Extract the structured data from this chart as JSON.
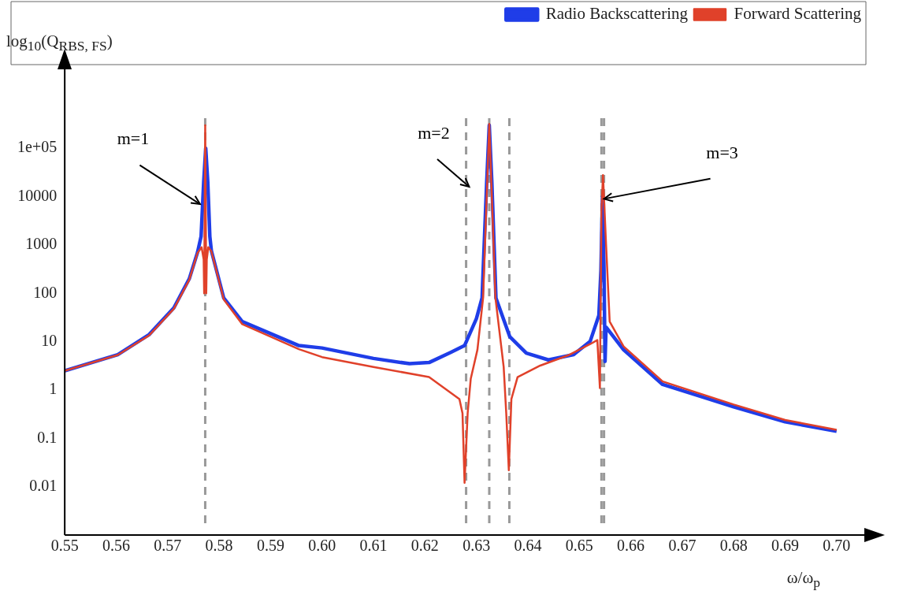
{
  "chart_data": {
    "type": "line",
    "xlabel": "ω/ω$_{p}$",
    "ylabel": "log$_{10}$(Q$_{RBS, FS}$)",
    "log": "y",
    "grid": false,
    "legend": "top right",
    "marker": "none",
    "line_style": "solid",
    "xlim": [
      0.55,
      0.706
    ],
    "ylim": [
      0.001,
      5000000
    ],
    "xticks": [
      0.55,
      0.56,
      0.57,
      0.58,
      0.59,
      {
        "value": 0.6,
        "label": "0.60"
      },
      0.61,
      0.62,
      0.63,
      0.64,
      0.65,
      0.66,
      0.67,
      0.68,
      0.69,
      {
        "value": 0.7,
        "label": "0.70"
      }
    ],
    "yticks": [
      0.01,
      0.1,
      1,
      10,
      100,
      1000,
      10000,
      {
        "value": 100000,
        "label": "1e+05"
      }
    ],
    "series": [
      {
        "name": "Radio Backscattering",
        "color": "#1f3de8",
        "x": [
          0.55,
          0.5603,
          0.5664,
          0.5712,
          0.5742,
          0.5758,
          0.5765,
          0.577,
          0.5774,
          0.5778,
          0.5782,
          0.5785,
          0.5809,
          0.5845,
          0.5955,
          0.6,
          0.61,
          0.617,
          0.6208,
          0.625,
          0.6277,
          0.63,
          0.6311,
          0.632,
          0.6325,
          0.633,
          0.6338,
          0.6365,
          0.6397,
          0.644,
          0.6489,
          0.6521,
          0.6538,
          0.6542,
          0.6545,
          0.6548,
          0.655,
          0.6552,
          0.6586,
          0.6662,
          0.68,
          0.69,
          0.7
        ],
        "values": [
          2.5,
          5.4,
          14,
          50,
          200,
          700,
          1500,
          20000,
          100000,
          20000,
          1500,
          760,
          80,
          26,
          8.3,
          7.4,
          4.5,
          3.5,
          3.7,
          6,
          8.3,
          30,
          80,
          20000,
          300000,
          20000,
          80,
          12.6,
          5.8,
          4.2,
          5.4,
          10.1,
          35,
          300,
          10000,
          300,
          3.9,
          20,
          6.8,
          1.3,
          0.45,
          0.22,
          0.14
        ]
      },
      {
        "name": "Forward Scattering",
        "color": "#e0412a",
        "x": [
          0.55,
          0.5603,
          0.5664,
          0.5712,
          0.5742,
          0.5758,
          0.5766,
          0.577,
          0.5771,
          0.5773,
          0.5775,
          0.5776,
          0.5779,
          0.5785,
          0.5809,
          0.5845,
          0.5955,
          0.6,
          0.61,
          0.6208,
          0.6267,
          0.6273,
          0.6277,
          0.6283,
          0.6289,
          0.6302,
          0.6313,
          0.6325,
          0.6337,
          0.6353,
          0.6358,
          0.6363,
          0.6368,
          0.638,
          0.6424,
          0.6478,
          0.6521,
          0.6535,
          0.654,
          0.6543,
          0.6546,
          0.6552,
          0.6559,
          0.6586,
          0.6662,
          0.68,
          0.69,
          0.7
        ],
        "values": [
          2.5,
          5.3,
          13.5,
          48,
          190,
          680,
          900,
          500,
          100,
          300000,
          100,
          500,
          900,
          740,
          75,
          23,
          7,
          4.8,
          3,
          1.85,
          0.65,
          0.33,
          0.012,
          0.33,
          1.7,
          6.8,
          80,
          320000,
          80,
          3,
          0.33,
          0.022,
          0.65,
          1.85,
          3.2,
          5.2,
          8.9,
          10.8,
          1.1,
          4800,
          28000,
          1000,
          26,
          8,
          1.5,
          0.5,
          0.24,
          0.15
        ]
      }
    ],
    "ref_lines": [
      {
        "axis": "x",
        "value": 0.5773,
        "color": "#999999",
        "line_style": "dashed"
      },
      {
        "axis": "x",
        "value": 0.628,
        "color": "#999999",
        "line_style": "dashed"
      },
      {
        "axis": "x",
        "value": 0.6325,
        "color": "#999999",
        "line_style": "dashed"
      },
      {
        "axis": "x",
        "value": 0.6364,
        "color": "#999999",
        "line_style": "dashed"
      },
      {
        "axis": "x",
        "value": 0.6543,
        "color": "#999999",
        "line_style": "dashed"
      },
      {
        "axis": "x",
        "value": 0.6548,
        "color": "#999999",
        "line_style": "dashed"
      }
    ],
    "annotations": [
      {
        "text": "m=1",
        "x": 0.5763,
        "y": 7000
      },
      {
        "text": "m=2",
        "x": 0.6286,
        "y": 16000
      },
      {
        "text": "m=3",
        "x": 0.6548,
        "y": 9000
      }
    ]
  }
}
